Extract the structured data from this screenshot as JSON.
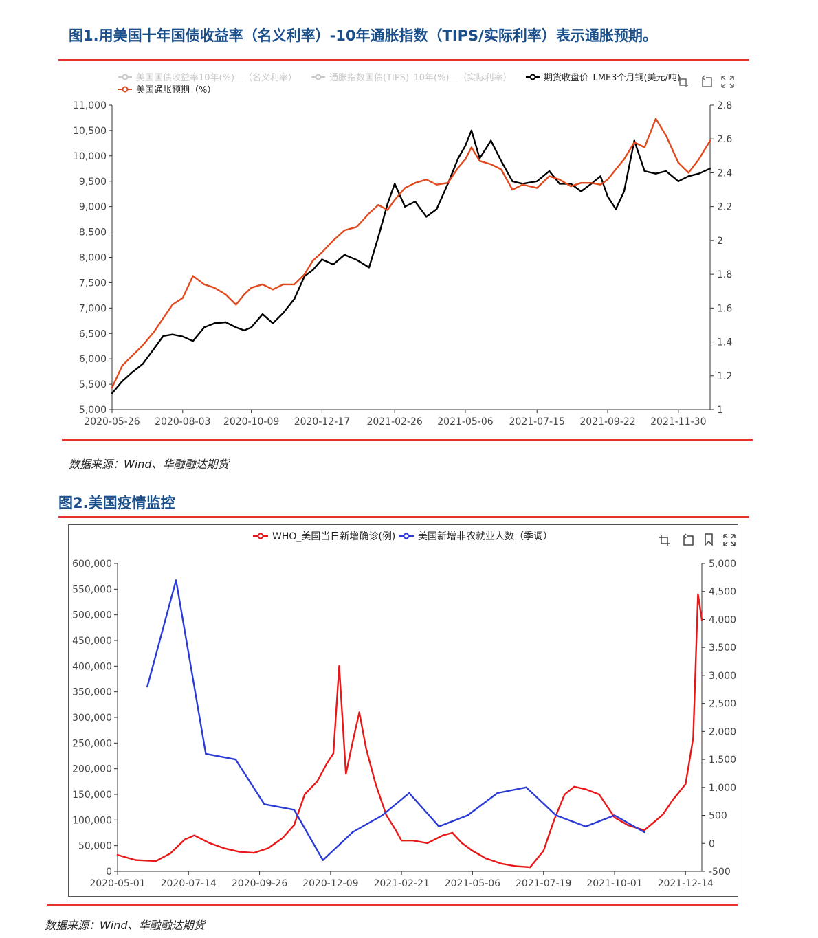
{
  "figures": [
    {
      "title": "图1.用美国十年国债收益率（名义利率）-10年通胀指数（TIPS/实际利率）表示通胀预期。",
      "source": "数据来源：Wind、华融融达期货",
      "chart_data": {
        "type": "line",
        "legend": [
          {
            "name": "美国国债收益率10年(%)__（名义利率）",
            "color": "#c8c8c8",
            "active": false
          },
          {
            "name": "通胀指数国债(TIPS)_10年(%)__（实际利率）",
            "color": "#c8c8c8",
            "active": false
          },
          {
            "name": "期货收盘价_LME3个月铜(美元/吨)",
            "color": "#000000",
            "active": true
          },
          {
            "name": "美国通胀预期（%）",
            "color": "#e04a1e",
            "active": true
          }
        ],
        "x_ticks": [
          "2020-05-26",
          "2020-08-03",
          "2020-10-09",
          "2020-12-17",
          "2021-02-26",
          "2021-05-06",
          "2021-07-15",
          "2021-09-22",
          "2021-11-30"
        ],
        "x_range": [
          "2020-05-26",
          "2021-12-31"
        ],
        "y_left": {
          "min": 5000,
          "max": 11000,
          "ticks": [
            "5,000",
            "5,500",
            "6,000",
            "6,500",
            "7,000",
            "7,500",
            "8,000",
            "8,500",
            "9,000",
            "9,500",
            "10,000",
            "10,500",
            "11,000"
          ]
        },
        "y_right": {
          "min": 1,
          "max": 2.8,
          "ticks": [
            "1",
            "1.2",
            "1.4",
            "1.6",
            "1.8",
            "2",
            "2.2",
            "2.4",
            "2.6",
            "2.8"
          ]
        },
        "series": [
          {
            "name": "期货收盘价_LME3个月铜(美元/吨)",
            "axis": "left",
            "color": "#000000",
            "points": [
              [
                "2020-05-26",
                5320
              ],
              [
                "2020-06-05",
                5560
              ],
              [
                "2020-06-15",
                5740
              ],
              [
                "2020-06-25",
                5900
              ],
              [
                "2020-07-06",
                6200
              ],
              [
                "2020-07-15",
                6450
              ],
              [
                "2020-07-24",
                6480
              ],
              [
                "2020-08-03",
                6440
              ],
              [
                "2020-08-13",
                6350
              ],
              [
                "2020-08-24",
                6620
              ],
              [
                "2020-09-03",
                6700
              ],
              [
                "2020-09-14",
                6720
              ],
              [
                "2020-09-24",
                6620
              ],
              [
                "2020-10-02",
                6560
              ],
              [
                "2020-10-09",
                6620
              ],
              [
                "2020-10-20",
                6880
              ],
              [
                "2020-10-30",
                6700
              ],
              [
                "2020-11-09",
                6900
              ],
              [
                "2020-11-20",
                7180
              ],
              [
                "2020-11-30",
                7630
              ],
              [
                "2020-12-08",
                7750
              ],
              [
                "2020-12-17",
                7960
              ],
              [
                "2020-12-28",
                7860
              ],
              [
                "2021-01-08",
                8050
              ],
              [
                "2021-01-20",
                7950
              ],
              [
                "2021-02-01",
                7800
              ],
              [
                "2021-02-10",
                8400
              ],
              [
                "2021-02-19",
                9050
              ],
              [
                "2021-02-26",
                9450
              ],
              [
                "2021-03-08",
                9000
              ],
              [
                "2021-03-18",
                9100
              ],
              [
                "2021-03-29",
                8800
              ],
              [
                "2021-04-08",
                8950
              ],
              [
                "2021-04-19",
                9450
              ],
              [
                "2021-04-29",
                9950
              ],
              [
                "2021-05-06",
                10200
              ],
              [
                "2021-05-12",
                10500
              ],
              [
                "2021-05-20",
                9950
              ],
              [
                "2021-05-31",
                10300
              ],
              [
                "2021-06-10",
                9900
              ],
              [
                "2021-06-21",
                9500
              ],
              [
                "2021-07-01",
                9450
              ],
              [
                "2021-07-15",
                9500
              ],
              [
                "2021-07-27",
                9700
              ],
              [
                "2021-08-06",
                9450
              ],
              [
                "2021-08-17",
                9450
              ],
              [
                "2021-08-27",
                9300
              ],
              [
                "2021-09-06",
                9450
              ],
              [
                "2021-09-15",
                9600
              ],
              [
                "2021-09-22",
                9200
              ],
              [
                "2021-09-30",
                8950
              ],
              [
                "2021-10-08",
                9300
              ],
              [
                "2021-10-18",
                10300
              ],
              [
                "2021-10-28",
                9700
              ],
              [
                "2021-11-08",
                9650
              ],
              [
                "2021-11-18",
                9700
              ],
              [
                "2021-11-30",
                9500
              ],
              [
                "2021-12-10",
                9600
              ],
              [
                "2021-12-20",
                9650
              ],
              [
                "2021-12-31",
                9750
              ]
            ]
          },
          {
            "name": "美国通胀预期（%）",
            "axis": "right",
            "color": "#e04a1e",
            "points": [
              [
                "2020-05-26",
                1.13
              ],
              [
                "2020-06-05",
                1.26
              ],
              [
                "2020-06-15",
                1.32
              ],
              [
                "2020-06-25",
                1.38
              ],
              [
                "2020-07-06",
                1.46
              ],
              [
                "2020-07-15",
                1.54
              ],
              [
                "2020-07-24",
                1.62
              ],
              [
                "2020-08-03",
                1.66
              ],
              [
                "2020-08-13",
                1.79
              ],
              [
                "2020-08-24",
                1.74
              ],
              [
                "2020-09-03",
                1.72
              ],
              [
                "2020-09-14",
                1.68
              ],
              [
                "2020-09-24",
                1.62
              ],
              [
                "2020-10-02",
                1.68
              ],
              [
                "2020-10-09",
                1.72
              ],
              [
                "2020-10-20",
                1.74
              ],
              [
                "2020-10-30",
                1.71
              ],
              [
                "2020-11-09",
                1.74
              ],
              [
                "2020-11-20",
                1.74
              ],
              [
                "2020-11-30",
                1.8
              ],
              [
                "2020-12-08",
                1.88
              ],
              [
                "2020-12-17",
                1.93
              ],
              [
                "2020-12-28",
                2.0
              ],
              [
                "2021-01-08",
                2.06
              ],
              [
                "2021-01-20",
                2.08
              ],
              [
                "2021-02-01",
                2.16
              ],
              [
                "2021-02-10",
                2.21
              ],
              [
                "2021-02-19",
                2.18
              ],
              [
                "2021-02-26",
                2.24
              ],
              [
                "2021-03-08",
                2.31
              ],
              [
                "2021-03-18",
                2.34
              ],
              [
                "2021-03-29",
                2.36
              ],
              [
                "2021-04-08",
                2.33
              ],
              [
                "2021-04-19",
                2.34
              ],
              [
                "2021-04-29",
                2.43
              ],
              [
                "2021-05-06",
                2.48
              ],
              [
                "2021-05-12",
                2.55
              ],
              [
                "2021-05-20",
                2.47
              ],
              [
                "2021-05-31",
                2.45
              ],
              [
                "2021-06-10",
                2.42
              ],
              [
                "2021-06-21",
                2.3
              ],
              [
                "2021-07-01",
                2.33
              ],
              [
                "2021-07-15",
                2.31
              ],
              [
                "2021-07-27",
                2.38
              ],
              [
                "2021-08-06",
                2.36
              ],
              [
                "2021-08-17",
                2.32
              ],
              [
                "2021-08-27",
                2.34
              ],
              [
                "2021-09-06",
                2.34
              ],
              [
                "2021-09-15",
                2.33
              ],
              [
                "2021-09-22",
                2.36
              ],
              [
                "2021-09-30",
                2.42
              ],
              [
                "2021-10-08",
                2.48
              ],
              [
                "2021-10-18",
                2.58
              ],
              [
                "2021-10-28",
                2.55
              ],
              [
                "2021-11-08",
                2.72
              ],
              [
                "2021-11-18",
                2.62
              ],
              [
                "2021-11-30",
                2.46
              ],
              [
                "2021-12-10",
                2.4
              ],
              [
                "2021-12-20",
                2.48
              ],
              [
                "2021-12-31",
                2.59
              ]
            ]
          }
        ]
      }
    },
    {
      "title": "图2.美国疫情监控",
      "source": "数据来源：Wind、华融融达期货",
      "chart_data": {
        "type": "line",
        "legend": [
          {
            "name": "WHO_美国当日新增确诊(例)",
            "color": "#e81818",
            "active": true
          },
          {
            "name": "美国新增非农就业人数（季调）",
            "color": "#2b3bd6",
            "active": true
          }
        ],
        "x_ticks": [
          "2020-05-01",
          "2020-07-14",
          "2020-09-26",
          "2020-12-09",
          "2021-02-21",
          "2021-05-06",
          "2021-07-19",
          "2021-10-01",
          "2021-12-14"
        ],
        "x_range": [
          "2020-05-01",
          "2021-12-31"
        ],
        "y_left": {
          "min": 0,
          "max": 600000,
          "ticks": [
            "0",
            "50,000",
            "100,000",
            "150,000",
            "200,000",
            "250,000",
            "300,000",
            "350,000",
            "400,000",
            "450,000",
            "500,000",
            "550,000",
            "600,000"
          ]
        },
        "y_right": {
          "min": -500,
          "max": 5000,
          "ticks": [
            "-500",
            "0",
            "500",
            "1,000",
            "1,500",
            "2,000",
            "2,500",
            "3,000",
            "3,500",
            "4,000",
            "4,500",
            "5,000"
          ]
        },
        "series": [
          {
            "name": "WHO_美国当日新增确诊(例)",
            "axis": "left",
            "color": "#e81818",
            "points": [
              [
                "2020-05-01",
                32000
              ],
              [
                "2020-05-20",
                22000
              ],
              [
                "2020-06-10",
                20000
              ],
              [
                "2020-06-25",
                35000
              ],
              [
                "2020-07-10",
                62000
              ],
              [
                "2020-07-20",
                70000
              ],
              [
                "2020-08-05",
                55000
              ],
              [
                "2020-08-20",
                45000
              ],
              [
                "2020-09-05",
                38000
              ],
              [
                "2020-09-20",
                36000
              ],
              [
                "2020-10-05",
                45000
              ],
              [
                "2020-10-20",
                65000
              ],
              [
                "2020-11-01",
                90000
              ],
              [
                "2020-11-12",
                150000
              ],
              [
                "2020-11-25",
                175000
              ],
              [
                "2020-12-05",
                210000
              ],
              [
                "2020-12-12",
                230000
              ],
              [
                "2020-12-18",
                400000
              ],
              [
                "2020-12-25",
                190000
              ],
              [
                "2021-01-02",
                260000
              ],
              [
                "2021-01-08",
                310000
              ],
              [
                "2021-01-15",
                240000
              ],
              [
                "2021-01-25",
                170000
              ],
              [
                "2021-02-05",
                110000
              ],
              [
                "2021-02-15",
                80000
              ],
              [
                "2021-02-21",
                60000
              ],
              [
                "2021-03-05",
                60000
              ],
              [
                "2021-03-20",
                55000
              ],
              [
                "2021-04-05",
                70000
              ],
              [
                "2021-04-15",
                75000
              ],
              [
                "2021-04-25",
                55000
              ],
              [
                "2021-05-06",
                40000
              ],
              [
                "2021-05-20",
                25000
              ],
              [
                "2021-06-05",
                15000
              ],
              [
                "2021-06-20",
                10000
              ],
              [
                "2021-07-05",
                8000
              ],
              [
                "2021-07-19",
                40000
              ],
              [
                "2021-07-30",
                100000
              ],
              [
                "2021-08-10",
                150000
              ],
              [
                "2021-08-20",
                165000
              ],
              [
                "2021-09-01",
                160000
              ],
              [
                "2021-09-15",
                150000
              ],
              [
                "2021-10-01",
                105000
              ],
              [
                "2021-10-15",
                90000
              ],
              [
                "2021-11-01",
                80000
              ],
              [
                "2021-11-20",
                110000
              ],
              [
                "2021-12-01",
                140000
              ],
              [
                "2021-12-14",
                170000
              ],
              [
                "2021-12-22",
                260000
              ],
              [
                "2021-12-27",
                540000
              ],
              [
                "2021-12-31",
                490000
              ]
            ]
          },
          {
            "name": "美国新增非农就业人数（季调）",
            "axis": "right",
            "color": "#2b3bd6",
            "points": [
              [
                "2020-06-01",
                2800
              ],
              [
                "2020-07-01",
                4700
              ],
              [
                "2020-08-01",
                1600
              ],
              [
                "2020-09-01",
                1500
              ],
              [
                "2020-10-01",
                700
              ],
              [
                "2020-11-01",
                600
              ],
              [
                "2020-12-01",
                -300
              ],
              [
                "2021-01-01",
                200
              ],
              [
                "2021-02-01",
                500
              ],
              [
                "2021-03-01",
                900
              ],
              [
                "2021-04-01",
                300
              ],
              [
                "2021-05-01",
                500
              ],
              [
                "2021-06-01",
                900
              ],
              [
                "2021-07-01",
                1000
              ],
              [
                "2021-08-01",
                500
              ],
              [
                "2021-09-01",
                300
              ],
              [
                "2021-10-01",
                500
              ],
              [
                "2021-11-01",
                200
              ]
            ]
          }
        ]
      }
    }
  ]
}
